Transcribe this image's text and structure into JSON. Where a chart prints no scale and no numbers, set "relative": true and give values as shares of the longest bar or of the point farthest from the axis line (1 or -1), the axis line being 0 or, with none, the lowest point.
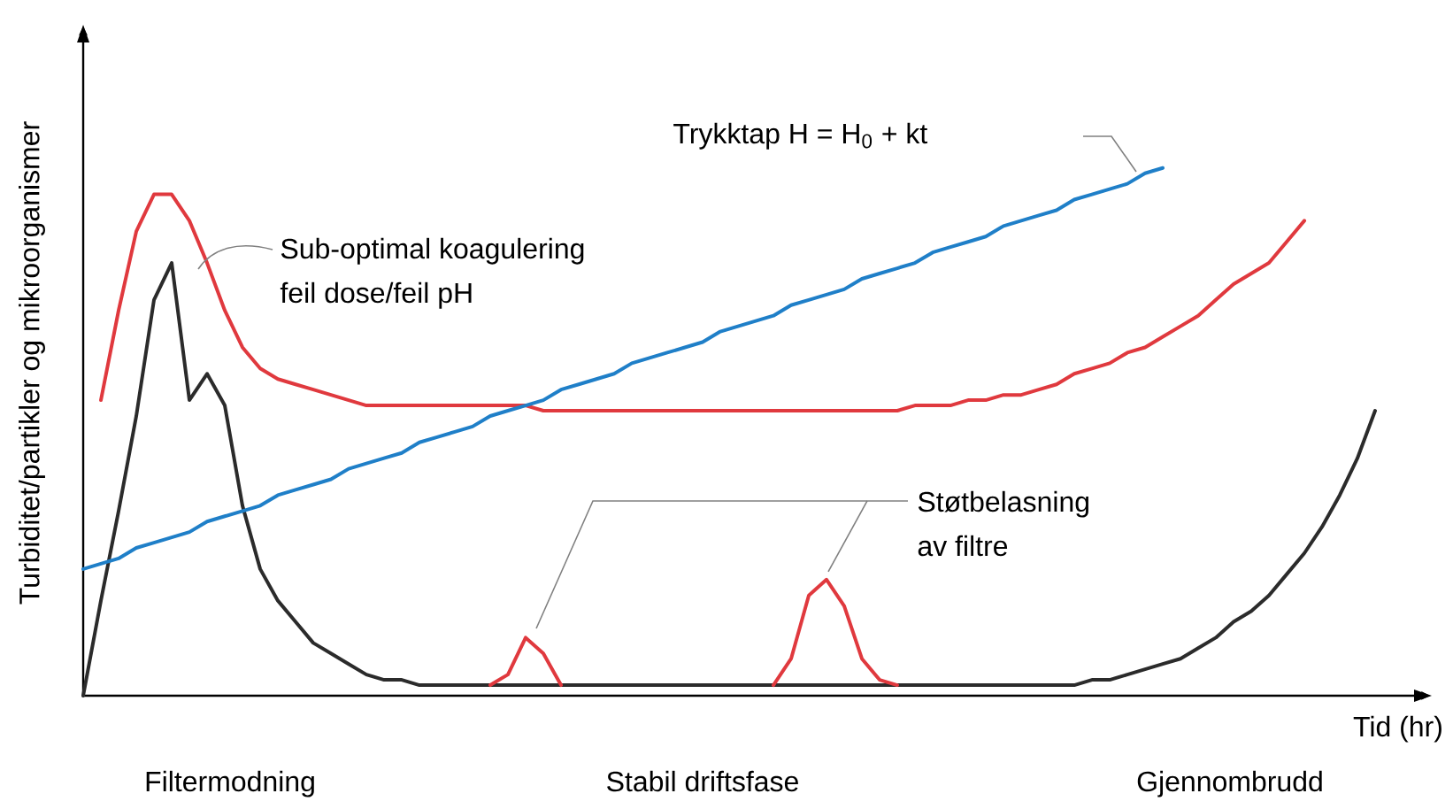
{
  "chart_data": {
    "type": "line",
    "relative": true,
    "xlabel": "Tid (hr)",
    "ylabel": "Turbiditet/partikler og mikroorganismer",
    "categories": [
      null,
      null,
      null,
      null,
      null,
      null,
      null,
      null,
      null,
      null,
      null,
      null,
      null,
      null,
      null,
      null,
      null,
      null,
      null,
      null,
      null,
      null,
      null,
      null,
      null,
      null,
      null,
      null,
      null,
      null,
      null,
      null,
      null,
      null,
      null,
      null,
      null,
      null,
      null,
      null,
      null,
      null,
      null,
      null,
      null,
      null,
      null,
      null,
      null,
      null,
      null,
      null,
      null,
      null,
      null,
      null,
      null,
      null,
      null,
      null,
      null,
      null,
      null,
      null,
      null,
      null,
      null,
      null,
      null,
      null,
      null,
      null,
      null,
      null,
      null,
      null,
      null
    ],
    "series": [
      {
        "color": "#2b2b2b",
        "values": [
          0,
          0.18,
          0.35,
          0.53,
          0.75,
          0.82,
          0.56,
          0.61,
          0.55,
          0.36,
          0.24,
          0.18,
          0.14,
          0.1,
          0.08,
          0.06,
          0.04,
          0.03,
          0.03,
          0.02,
          0.02,
          0.02,
          0.02,
          0.02,
          0.02,
          0.02,
          0.02,
          0.02,
          0.02,
          0.02,
          0.02,
          0.02,
          0.02,
          0.02,
          0.02,
          0.02,
          0.02,
          0.02,
          0.02,
          0.02,
          0.02,
          0.02,
          0.02,
          0.02,
          0.02,
          0.02,
          0.02,
          0.02,
          0.02,
          0.02,
          0.02,
          0.02,
          0.02,
          0.02,
          0.02,
          0.02,
          0.02,
          0.03,
          0.03,
          0.04,
          0.05,
          0.06,
          0.07,
          0.09,
          0.11,
          0.14,
          0.16,
          0.19,
          0.23,
          0.27,
          0.32,
          0.38,
          0.45,
          0.54,
          null,
          null,
          null
        ]
      },
      {
        "color": "#e0393e",
        "values": [
          null,
          0.56,
          0.73,
          0.88,
          0.95,
          0.95,
          0.9,
          0.82,
          0.73,
          0.66,
          0.62,
          0.6,
          0.59,
          0.58,
          0.57,
          0.56,
          0.55,
          0.55,
          0.55,
          0.55,
          0.55,
          0.55,
          0.55,
          0.55,
          0.55,
          0.55,
          0.54,
          0.54,
          0.54,
          0.54,
          0.54,
          0.54,
          0.54,
          0.54,
          0.54,
          0.54,
          0.54,
          0.54,
          0.54,
          0.54,
          0.54,
          0.54,
          0.54,
          0.54,
          0.54,
          0.54,
          0.54,
          0.55,
          0.55,
          0.55,
          0.56,
          0.56,
          0.57,
          0.57,
          0.58,
          0.59,
          0.61,
          0.62,
          0.63,
          0.65,
          0.66,
          0.68,
          0.7,
          0.72,
          0.75,
          0.78,
          0.8,
          0.82,
          0.86,
          0.9,
          null,
          null,
          null,
          null,
          null,
          null,
          null
        ]
      },
      {
        "color": "#e0393e",
        "values": [
          null,
          null,
          null,
          null,
          null,
          null,
          null,
          null,
          null,
          null,
          null,
          null,
          null,
          null,
          null,
          null,
          null,
          null,
          null,
          null,
          null,
          null,
          null,
          0.02,
          0.04,
          0.11,
          0.08,
          0.02,
          null,
          null,
          null,
          null,
          null,
          null,
          null,
          null,
          null,
          null,
          null,
          0.02,
          0.07,
          0.19,
          0.22,
          0.17,
          0.07,
          0.03,
          0.02,
          null,
          null,
          null,
          null,
          null,
          null,
          null,
          null,
          null,
          null,
          null,
          null,
          null,
          null,
          null,
          null,
          null,
          null,
          null,
          null,
          null,
          null,
          null,
          null,
          null,
          null,
          null,
          null,
          null,
          null
        ]
      },
      {
        "color": "#1f7fc8",
        "values": [
          0.24,
          0.25,
          0.26,
          0.28,
          0.29,
          0.3,
          0.31,
          0.33,
          0.34,
          0.35,
          0.36,
          0.38,
          0.39,
          0.4,
          0.41,
          0.43,
          0.44,
          0.45,
          0.46,
          0.48,
          0.49,
          0.5,
          0.51,
          0.53,
          0.54,
          0.55,
          0.56,
          0.58,
          0.59,
          0.6,
          0.61,
          0.63,
          0.64,
          0.65,
          0.66,
          0.67,
          0.69,
          0.7,
          0.71,
          0.72,
          0.74,
          0.75,
          0.76,
          0.77,
          0.79,
          0.8,
          0.81,
          0.82,
          0.84,
          0.85,
          0.86,
          0.87,
          0.89,
          0.9,
          0.91,
          0.92,
          0.94,
          0.95,
          0.96,
          0.97,
          0.99,
          1.0,
          null,
          null,
          null,
          null,
          null,
          null,
          null,
          null,
          null,
          null,
          null,
          null,
          null,
          null,
          null
        ]
      }
    ],
    "annotations": [
      "Trykktap H = H$_{0}$ + kt",
      "Sub-optimal koagulering",
      "feil dose/feil pH",
      "Støtbelasning",
      "av filtre",
      "Filtermodning",
      "Stabil driftsfase",
      "Gjennombrudd"
    ]
  }
}
